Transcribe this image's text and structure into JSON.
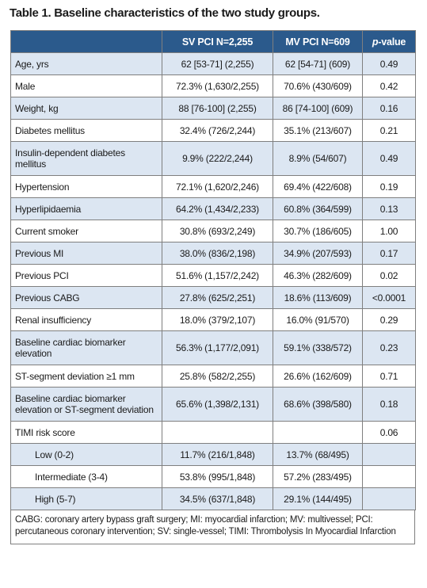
{
  "title": "Table 1. Baseline characteristics of the two study groups.",
  "table": {
    "header": [
      "",
      "SV PCI N=2,255",
      "MV PCI N=609",
      [
        "p",
        "-value"
      ]
    ],
    "rows": [
      [
        "Age, yrs",
        "62 [53-71] (2,255)",
        "62 [54-71] (609)",
        "0.49"
      ],
      [
        "Male",
        "72.3% (1,630/2,255)",
        "70.6% (430/609)",
        "0.42"
      ],
      [
        "Weight, kg",
        "88 [76-100] (2,255)",
        "86 [74-100] (609)",
        "0.16"
      ],
      [
        "Diabetes mellitus",
        "32.4% (726/2,244)",
        "35.1% (213/607)",
        "0.21"
      ],
      [
        "Insulin-dependent diabetes mellitus",
        "9.9% (222/2,244)",
        "8.9% (54/607)",
        "0.49"
      ],
      [
        "Hypertension",
        "72.1% (1,620/2,246)",
        "69.4% (422/608)",
        "0.19"
      ],
      [
        "Hyperlipidaemia",
        "64.2% (1,434/2,233)",
        "60.8% (364/599)",
        "0.13"
      ],
      [
        "Current smoker",
        "30.8% (693/2,249)",
        "30.7% (186/605)",
        "1.00"
      ],
      [
        "Previous MI",
        "38.0% (836/2,198)",
        "34.9% (207/593)",
        "0.17"
      ],
      [
        "Previous PCI",
        "51.6% (1,157/2,242)",
        "46.3% (282/609)",
        "0.02"
      ],
      [
        "Previous CABG",
        "27.8% (625/2,251)",
        "18.6% (113/609)",
        "<0.0001"
      ],
      [
        "Renal insufficiency",
        "18.0% (379/2,107)",
        "16.0% (91/570)",
        "0.29"
      ],
      [
        "Baseline cardiac biomarker elevation",
        "56.3% (1,177/2,091)",
        "59.1% (338/572)",
        "0.23"
      ],
      [
        "ST-segment deviation ≥1 mm",
        "25.8% (582/2,255)",
        "26.6% (162/609)",
        "0.71"
      ],
      [
        "Baseline cardiac biomarker elevation or ST-segment deviation",
        "65.6% (1,398/2,131)",
        "68.6% (398/580)",
        "0.18"
      ],
      [
        "TIMI risk score",
        null,
        null,
        "0.06"
      ],
      [
        "Low (0-2)",
        "11.7% (216/1,848)",
        "13.7% (68/495)",
        null
      ],
      [
        "Intermediate (3-4)",
        "53.8% (995/1,848)",
        "57.2% (283/495)",
        null
      ],
      [
        "High (5-7)",
        "34.5% (637/1,848)",
        "29.1% (144/495)",
        null
      ]
    ]
  },
  "footnote": "CABG: coronary artery bypass graft surgery; MI: myocardial infarction; MV: multivessel; PCI: percutaneous coronary intervention; SV: single-vessel; TIMI: Thrombolysis In Myocardial Infarction"
}
